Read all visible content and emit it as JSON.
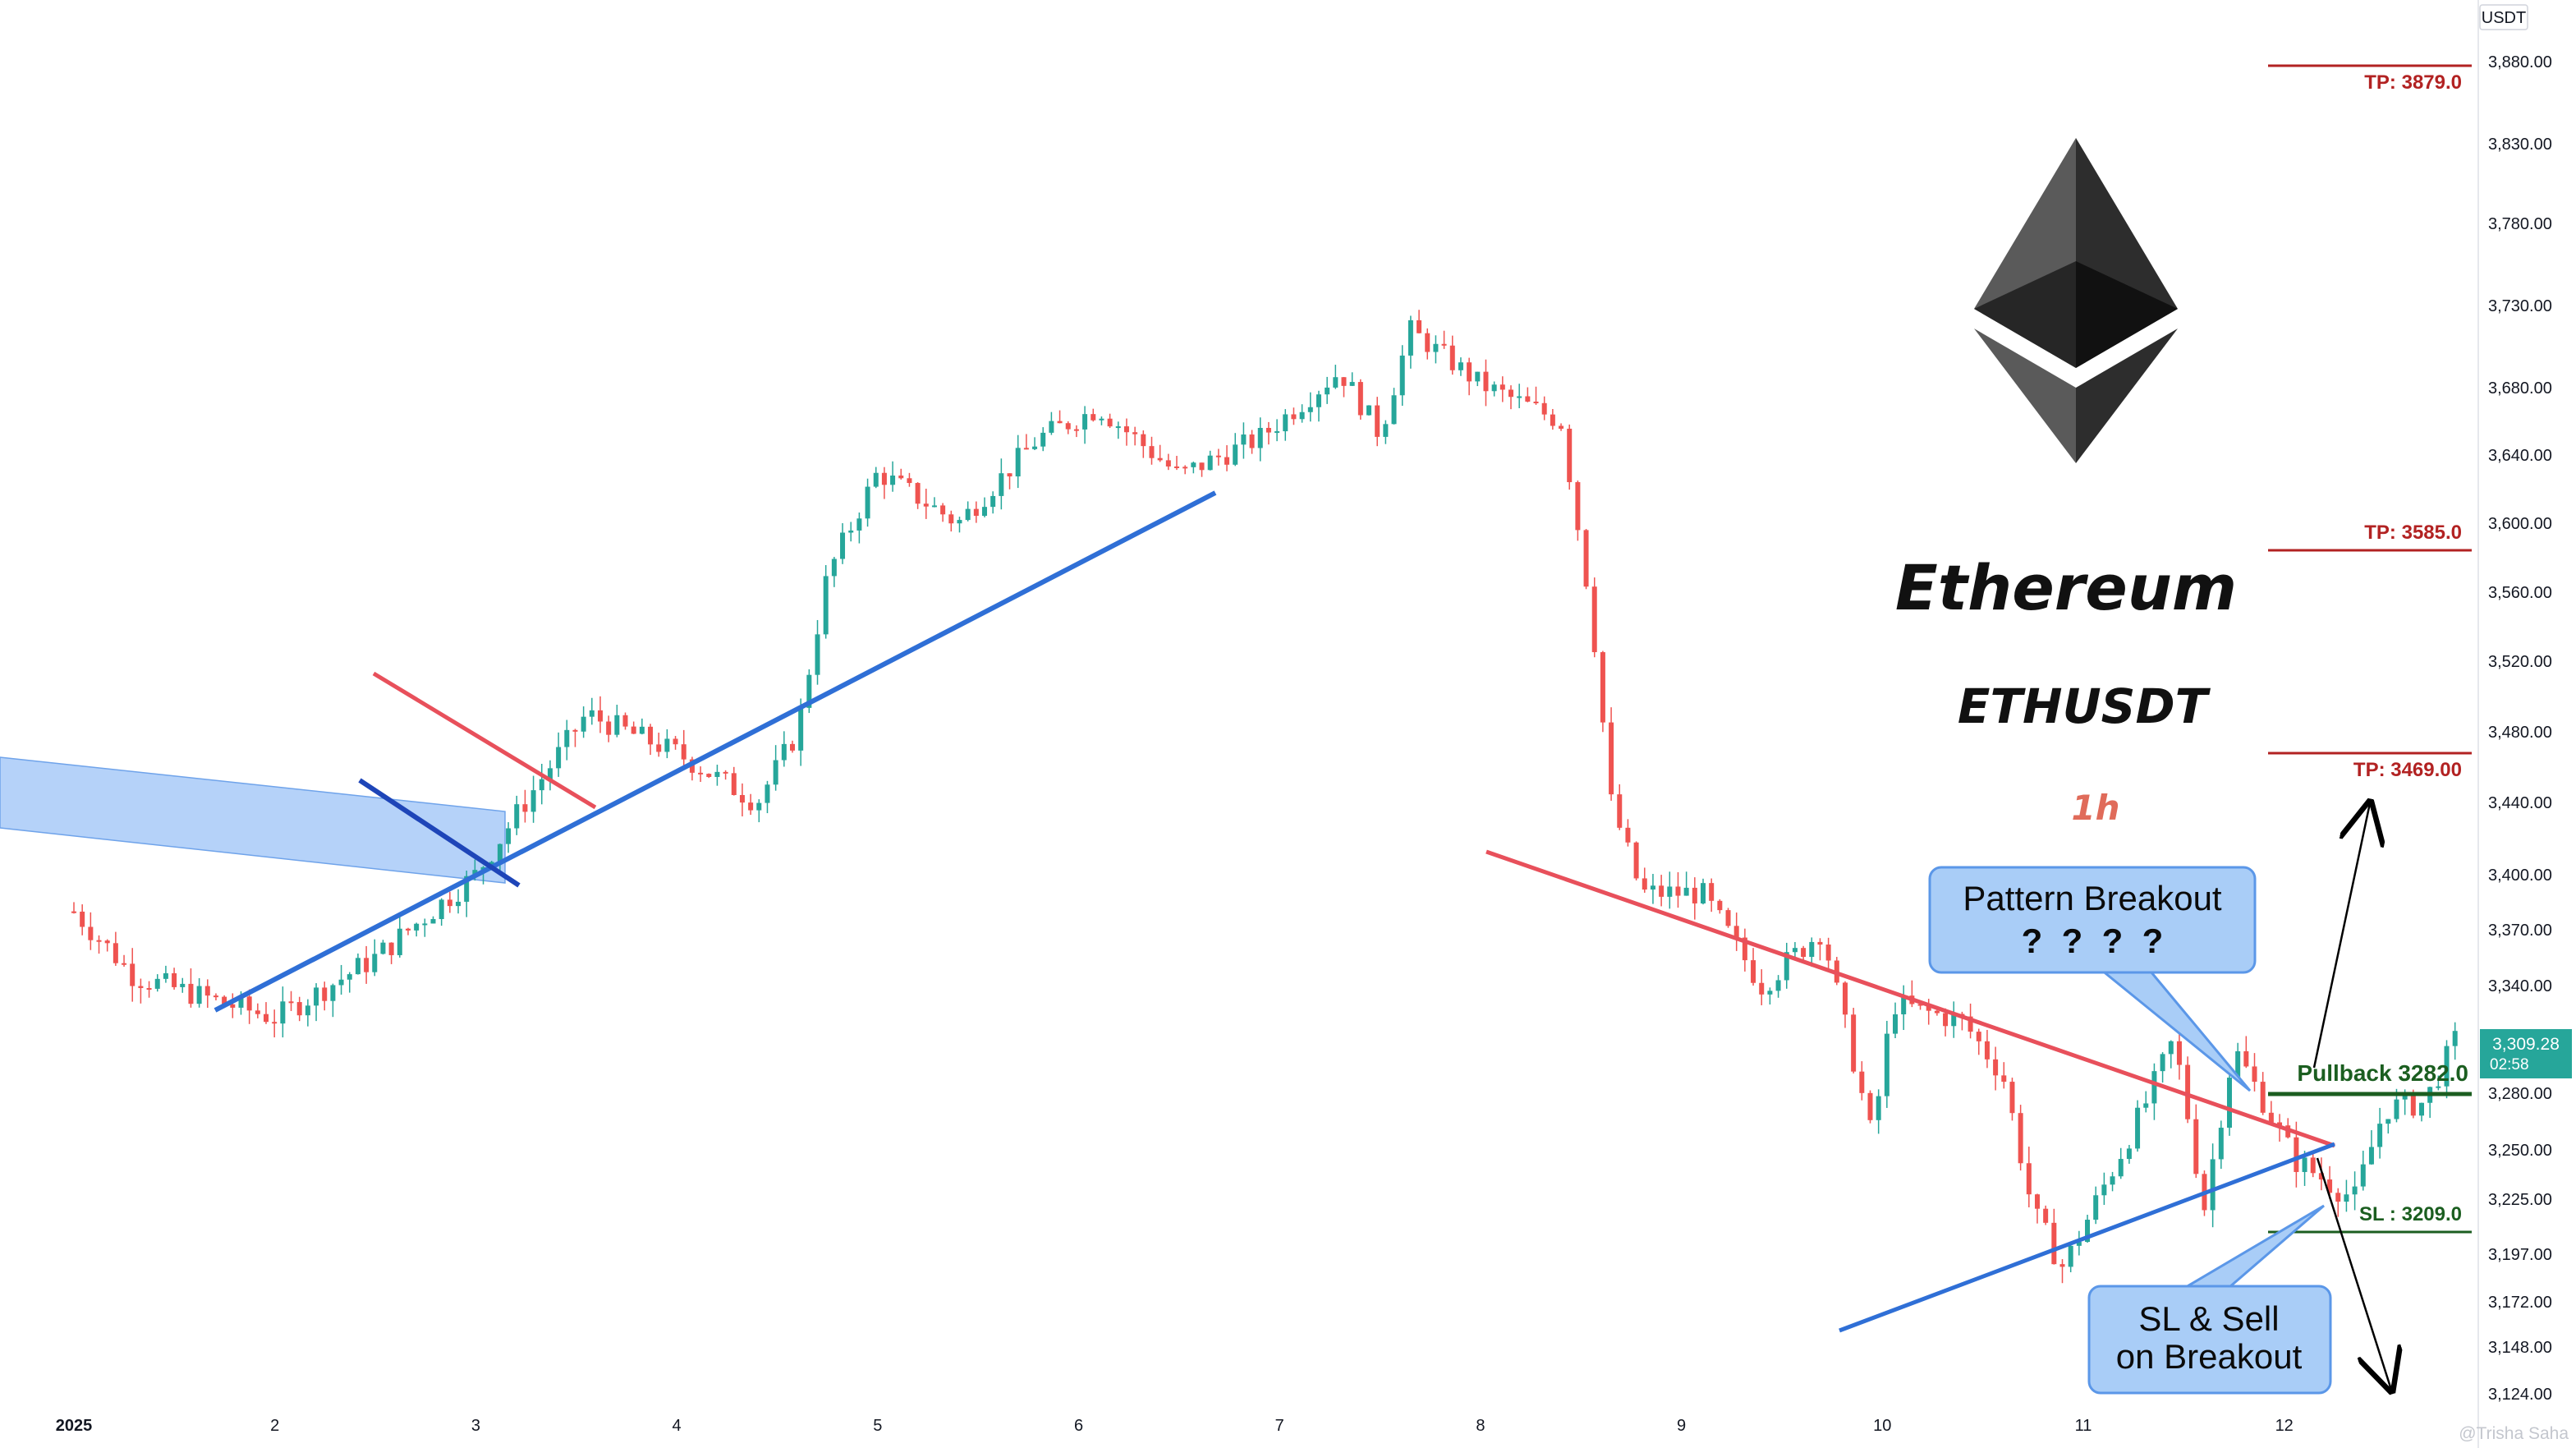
{
  "chart_data": {
    "type": "candlestick",
    "title": "Ethereum",
    "symbol": "ETHUSDT",
    "timeframe": "1h",
    "currency": "USDT",
    "y_ticks": [
      "3,880.00",
      "3,830.00",
      "3,780.00",
      "3,730.00",
      "3,680.00",
      "3,640.00",
      "3,600.00",
      "3,560.00",
      "3,520.00",
      "3,480.00",
      "3,440.00",
      "3,400.00",
      "3,370.00",
      "3,340.00",
      "3,280.00",
      "3,250.00",
      "3,225.00",
      "3,197.00",
      "3,172.00",
      "3,148.00",
      "3,124.00"
    ],
    "x_ticks": [
      "2025",
      "2",
      "3",
      "4",
      "5",
      "6",
      "7",
      "8",
      "9",
      "10",
      "11",
      "12"
    ],
    "last_price": "3,309.28",
    "countdown": "02:58",
    "levels": [
      {
        "label": "TP: 3879.0",
        "price": 3879.0,
        "color": "#b22222"
      },
      {
        "label": "TP: 3585.0",
        "price": 3585.0,
        "color": "#b22222"
      },
      {
        "label": "TP: 3469.00",
        "price": 3469.0,
        "color": "#b22222"
      },
      {
        "label": "Pullback 3282.0",
        "price": 3282.0,
        "color": "#1b5e20"
      },
      {
        "label": "SL : 3209.0",
        "price": 3209.0,
        "color": "#1b5e20"
      }
    ],
    "callouts": [
      {
        "line1": "Pattern Breakout",
        "line2": "?  ?  ?  ?"
      },
      {
        "line1": "SL & Sell",
        "line2": "on Breakout"
      }
    ],
    "watermark": "@Trisha Saha",
    "colors": {
      "up": "#26a69a",
      "down": "#ef5350",
      "support": "#2f6fd6",
      "resistance": "#e8505b",
      "zone": "#9cc3f7",
      "callout_bg": "#a9cdf7",
      "callout_border": "#5b97e8"
    },
    "price_anchor_points": [
      {
        "t": 0.0,
        "p": 3380
      },
      {
        "t": 0.3,
        "p": 3345
      },
      {
        "t": 1.0,
        "p": 3322
      },
      {
        "t": 1.5,
        "p": 3355
      },
      {
        "t": 2.0,
        "p": 3400
      },
      {
        "t": 2.55,
        "p": 3490
      },
      {
        "t": 3.0,
        "p": 3468
      },
      {
        "t": 3.4,
        "p": 3440
      },
      {
        "t": 3.6,
        "p": 3480
      },
      {
        "t": 3.75,
        "p": 3570
      },
      {
        "t": 4.0,
        "p": 3630
      },
      {
        "t": 4.4,
        "p": 3600
      },
      {
        "t": 4.8,
        "p": 3650
      },
      {
        "t": 5.1,
        "p": 3668
      },
      {
        "t": 5.5,
        "p": 3628
      },
      {
        "t": 5.9,
        "p": 3650
      },
      {
        "t": 6.3,
        "p": 3690
      },
      {
        "t": 6.5,
        "p": 3652
      },
      {
        "t": 6.65,
        "p": 3715
      },
      {
        "t": 7.0,
        "p": 3682
      },
      {
        "t": 7.4,
        "p": 3660
      },
      {
        "t": 7.55,
        "p": 3550
      },
      {
        "t": 7.65,
        "p": 3440
      },
      {
        "t": 7.8,
        "p": 3390
      },
      {
        "t": 8.1,
        "p": 3390
      },
      {
        "t": 8.4,
        "p": 3340
      },
      {
        "t": 8.7,
        "p": 3370
      },
      {
        "t": 8.95,
        "p": 3255
      },
      {
        "t": 9.05,
        "p": 3330
      },
      {
        "t": 9.4,
        "p": 3320
      },
      {
        "t": 9.6,
        "p": 3290
      },
      {
        "t": 9.75,
        "p": 3218
      },
      {
        "t": 9.9,
        "p": 3190
      },
      {
        "t": 10.3,
        "p": 3272
      },
      {
        "t": 10.45,
        "p": 3310
      },
      {
        "t": 10.6,
        "p": 3220
      },
      {
        "t": 10.75,
        "p": 3305
      },
      {
        "t": 11.05,
        "p": 3245
      },
      {
        "t": 11.35,
        "p": 3225
      },
      {
        "t": 11.5,
        "p": 3272
      },
      {
        "t": 11.7,
        "p": 3275
      },
      {
        "t": 11.85,
        "p": 3309
      }
    ]
  }
}
